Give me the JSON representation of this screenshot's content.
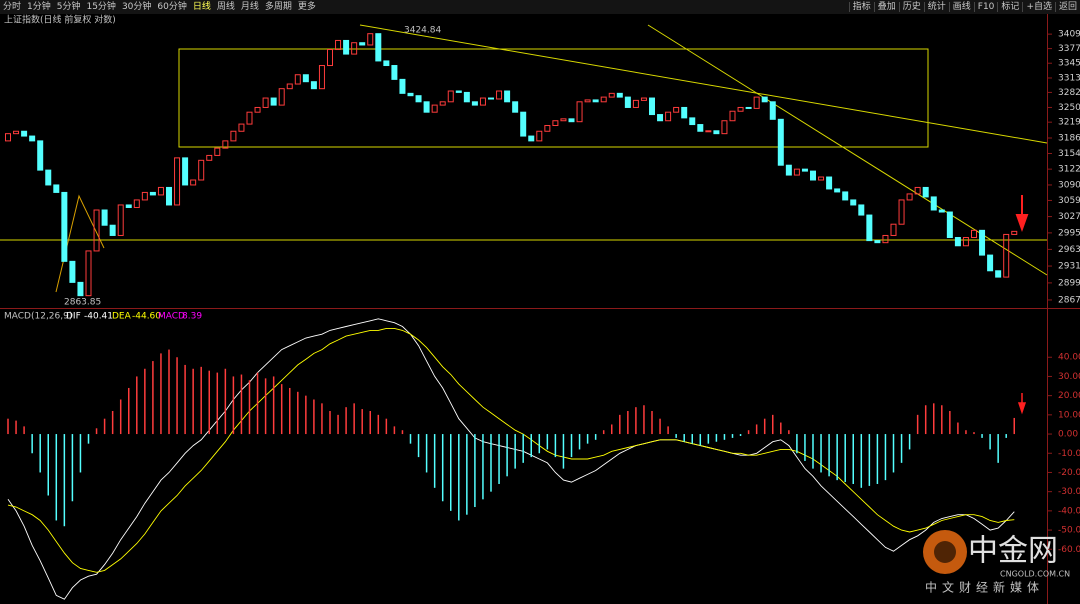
{
  "toolbar": {
    "left": [
      "分时",
      "1分钟",
      "5分钟",
      "15分钟",
      "30分钟",
      "60分钟",
      "日线",
      "周线",
      "月线",
      "多周期",
      "更多"
    ],
    "right": [
      "指标",
      "叠加",
      "历史",
      "统计",
      "画线",
      "F10",
      "标记",
      "+自选",
      "返回"
    ]
  },
  "chart_data": [
    {
      "type": "candlestick",
      "title": "上证指数(日线 前复权 对数)",
      "log_scale": true,
      "up_color": "#ff3c3c",
      "down_color": "#54ffff",
      "ylim": [
        2852,
        3454
      ],
      "yticks": [
        3409,
        3377,
        3345,
        3313,
        3282,
        3250,
        3219,
        3186,
        3154,
        3122,
        3090,
        3059,
        3027,
        2995,
        2963,
        2931,
        2899,
        2867
      ],
      "open": [
        3180,
        3195,
        3200,
        3190,
        3180,
        3120,
        3090,
        3075,
        2940,
        2900,
        2875,
        2960,
        3040,
        3010,
        2990,
        3050,
        3045,
        3060,
        3075,
        3070,
        3085,
        3050,
        3145,
        3090,
        3100,
        3140,
        3150,
        3165,
        3180,
        3200,
        3215,
        3240,
        3250,
        3270,
        3255,
        3290,
        3300,
        3320,
        3305,
        3290,
        3340,
        3375,
        3395,
        3365,
        3390,
        3385,
        3410,
        3350,
        3340,
        3310,
        3280,
        3275,
        3262,
        3240,
        3255,
        3262,
        3285,
        3282,
        3262,
        3255,
        3270,
        3268,
        3285,
        3262,
        3240,
        3190,
        3180,
        3200,
        3212,
        3222,
        3226,
        3220,
        3262,
        3266,
        3262,
        3272,
        3280,
        3272,
        3250,
        3265,
        3270,
        3235,
        3222,
        3240,
        3250,
        3228,
        3214,
        3200,
        3201,
        3195,
        3222,
        3242,
        3250,
        3248,
        3272,
        3262,
        3225,
        3130,
        3110,
        3122,
        3118,
        3100,
        3106,
        3082,
        3076,
        3060,
        3050,
        3030,
        2980,
        2976,
        2990,
        3012,
        3060,
        3072,
        3085,
        3066,
        3040,
        3036,
        2986,
        2970,
        2986,
        3000,
        2952,
        2922,
        2910,
        2992
      ],
      "close": [
        3195,
        3200,
        3190,
        3180,
        3120,
        3090,
        3075,
        2940,
        2900,
        2875,
        2960,
        3040,
        3010,
        2990,
        3050,
        3045,
        3060,
        3075,
        3070,
        3085,
        3050,
        3145,
        3090,
        3100,
        3140,
        3150,
        3165,
        3180,
        3200,
        3215,
        3240,
        3250,
        3270,
        3255,
        3290,
        3300,
        3320,
        3305,
        3290,
        3340,
        3375,
        3395,
        3365,
        3390,
        3385,
        3410,
        3350,
        3340,
        3310,
        3280,
        3275,
        3262,
        3240,
        3255,
        3262,
        3285,
        3282,
        3262,
        3255,
        3270,
        3268,
        3285,
        3262,
        3240,
        3190,
        3180,
        3200,
        3212,
        3222,
        3226,
        3220,
        3262,
        3266,
        3262,
        3272,
        3280,
        3272,
        3250,
        3265,
        3270,
        3235,
        3222,
        3240,
        3250,
        3228,
        3214,
        3200,
        3201,
        3195,
        3222,
        3242,
        3250,
        3248,
        3272,
        3262,
        3225,
        3130,
        3110,
        3122,
        3118,
        3100,
        3106,
        3082,
        3076,
        3060,
        3050,
        3030,
        2980,
        2976,
        2990,
        3012,
        3060,
        3072,
        3085,
        3066,
        3040,
        3036,
        2986,
        2970,
        2986,
        3000,
        2952,
        2922,
        2910,
        2992,
        2998
      ],
      "annotations": [
        "3424.84",
        "2863.85"
      ]
    },
    {
      "type": "macd",
      "title": "MACD(12,26,9)",
      "header_values": [
        "-40.41",
        "-44.60",
        "8.39"
      ],
      "ylim": [
        -88.5,
        64.6
      ],
      "yticks": [
        {
          "value": 40,
          "label": "40.00"
        },
        {
          "value": 30,
          "label": "30.00"
        },
        {
          "value": 20,
          "label": "20.00"
        },
        {
          "value": 10,
          "label": "10.00"
        },
        {
          "value": 0,
          "label": "0.00"
        },
        {
          "value": -10,
          "label": "-10.00"
        },
        {
          "value": -20,
          "label": "-20.00"
        },
        {
          "value": -30,
          "label": "-30.00"
        },
        {
          "value": -40,
          "label": "-40.00"
        },
        {
          "value": -50,
          "label": "-50.00"
        },
        {
          "value": -60,
          "label": "-60.00"
        }
      ],
      "series": [
        {
          "name": "DIF",
          "color": "#ffffff",
          "values": [
            -34,
            -40,
            -48,
            -58,
            -66,
            -75,
            -84,
            -86,
            -80,
            -76,
            -74,
            -73,
            -68,
            -62,
            -55,
            -49,
            -43,
            -36,
            -30,
            -24,
            -20,
            -15,
            -10,
            -6,
            -3,
            2,
            7,
            12,
            18,
            23,
            27,
            32,
            36,
            40,
            44,
            46,
            48,
            50,
            51,
            52,
            54,
            55,
            56,
            57,
            58,
            59,
            60,
            59,
            58,
            56,
            52,
            46,
            38,
            30,
            24,
            16,
            8,
            3,
            -2,
            -4,
            -5,
            -6,
            -7,
            -8,
            -9,
            -11,
            -13,
            -15,
            -20,
            -24,
            -25,
            -23,
            -21,
            -19,
            -16,
            -13,
            -10,
            -8,
            -6,
            -5,
            -4,
            -3,
            -3,
            -3,
            -4,
            -5,
            -6,
            -7,
            -8,
            -9,
            -10,
            -11,
            -11,
            -10,
            -7,
            -4,
            -3,
            -6,
            -12,
            -18,
            -22,
            -27,
            -31,
            -35,
            -39,
            -43,
            -47,
            -51,
            -55,
            -59,
            -61,
            -58,
            -55,
            -53,
            -50,
            -46,
            -44,
            -43,
            -42,
            -42,
            -44,
            -47,
            -50,
            -49,
            -45,
            -40.41
          ]
        },
        {
          "name": "DEA",
          "color": "#ffff00",
          "values": [
            -37,
            -38,
            -40,
            -42,
            -45,
            -50,
            -56,
            -62,
            -67,
            -70,
            -71,
            -72,
            -71,
            -68,
            -65,
            -61,
            -57,
            -52,
            -46,
            -40,
            -36,
            -32,
            -27,
            -23,
            -19,
            -14,
            -9,
            -4,
            2,
            7,
            12,
            16,
            20,
            24,
            28,
            32,
            36,
            39,
            42,
            44,
            47,
            49,
            51,
            52,
            53,
            54,
            54,
            55,
            55,
            54,
            52,
            49,
            45,
            40,
            35,
            31,
            26,
            22,
            18,
            14,
            11,
            8,
            5,
            2,
            0,
            -3,
            -6,
            -9,
            -11,
            -12,
            -13,
            -13,
            -13,
            -12,
            -11,
            -9,
            -8,
            -7,
            -6,
            -5,
            -4,
            -3,
            -3,
            -3,
            -4,
            -5,
            -6,
            -7,
            -8,
            -9,
            -10,
            -10,
            -11,
            -11,
            -10,
            -9,
            -8,
            -8,
            -9,
            -11,
            -13,
            -16,
            -19,
            -22,
            -26,
            -30,
            -34,
            -38,
            -42,
            -45,
            -48,
            -50,
            -51,
            -50,
            -49,
            -47,
            -45,
            -44,
            -43,
            -42,
            -42,
            -43,
            -45,
            -46,
            -45,
            -44.6
          ]
        },
        {
          "name": "MACD",
          "color": "#ff00ff",
          "up_color": "#ff3c3c",
          "down_color": "#54ffff",
          "values": [
            8,
            7,
            4,
            -10,
            -20,
            -32,
            -45,
            -48,
            -35,
            -20,
            -5,
            3,
            8,
            12,
            18,
            24,
            30,
            34,
            38,
            42,
            44,
            40,
            36,
            34,
            35,
            33,
            32,
            34,
            30,
            31,
            28,
            32,
            29,
            30,
            26,
            24,
            22,
            20,
            18,
            16,
            12,
            10,
            14,
            16,
            13,
            12,
            10,
            8,
            4,
            2,
            -5,
            -12,
            -20,
            -28,
            -35,
            -40,
            -45,
            -42,
            -38,
            -34,
            -30,
            -26,
            -22,
            -18,
            -15,
            -12,
            -10,
            -8,
            -12,
            -18,
            -12,
            -8,
            -5,
            -3,
            2,
            5,
            10,
            12,
            14,
            15,
            12,
            8,
            4,
            -2,
            -4,
            -5,
            -6,
            -5,
            -4,
            -3,
            -2,
            -1,
            2,
            5,
            8,
            10,
            6,
            2,
            -10,
            -14,
            -18,
            -20,
            -22,
            -24,
            -25,
            -26,
            -28,
            -27,
            -26,
            -24,
            -20,
            -15,
            -8,
            10,
            15,
            16,
            15,
            12,
            6,
            2,
            1,
            -2,
            -8,
            -15,
            -2,
            8.39
          ]
        }
      ]
    }
  ],
  "watermark": {
    "brand": "中金网",
    "site": "CNGOLD.COM.CN",
    "slogan": "中文财经新媒体"
  }
}
